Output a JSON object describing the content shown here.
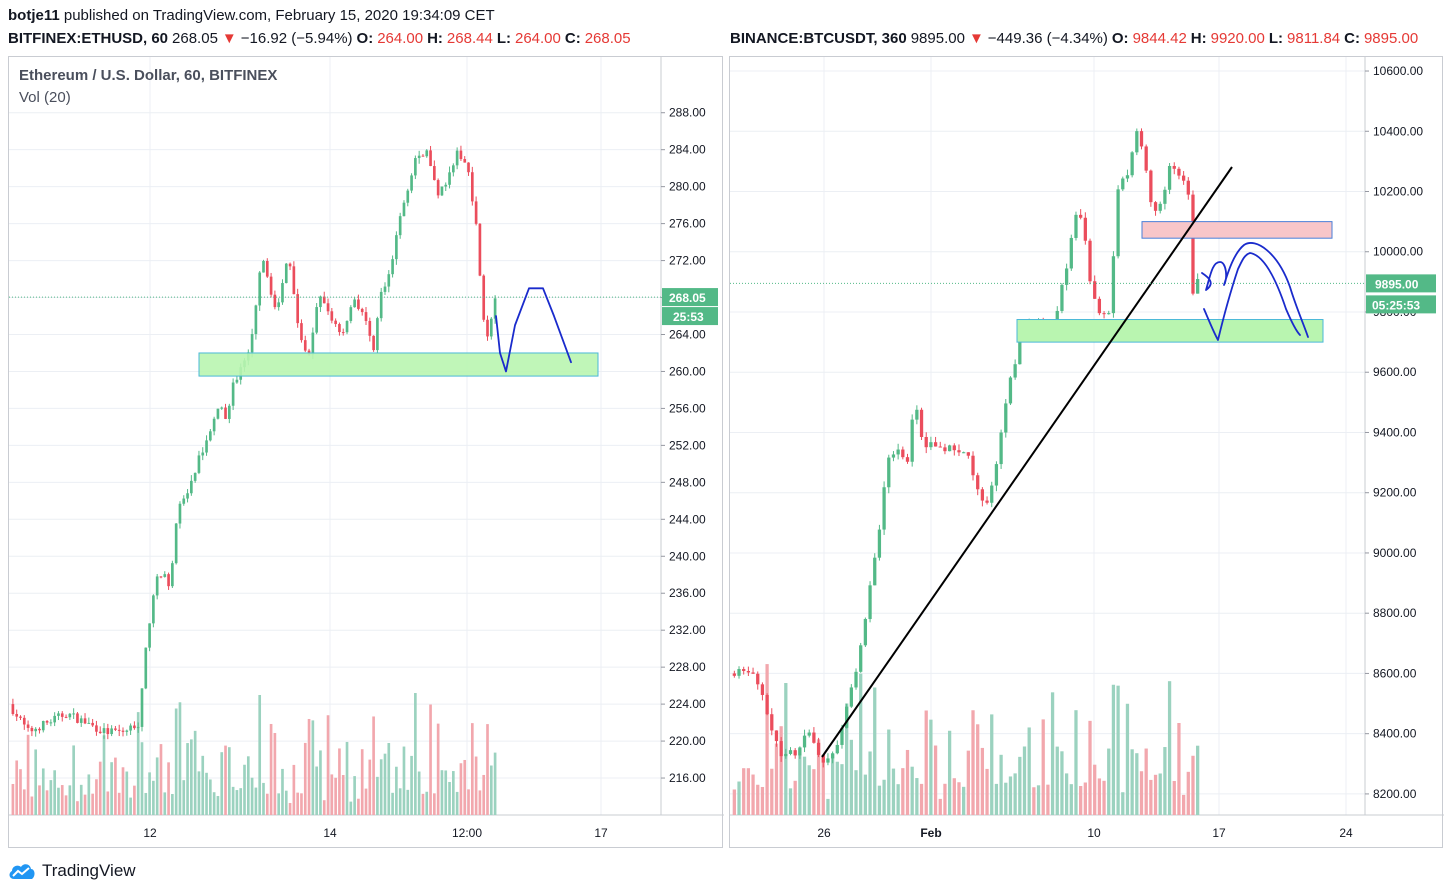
{
  "header": {
    "author": "botje11",
    "published_text": "published on TradingView.com, February 15, 2020 19:34:09 CET"
  },
  "left_quote": {
    "symbol": "BITFINEX:ETHUSD, 60",
    "price": "268.05",
    "arrow": "▼",
    "change": "−16.92 (−5.94%)",
    "o_label": "O:",
    "o": "264.00",
    "h_label": "H:",
    "h": "268.44",
    "l_label": "L:",
    "l": "264.00",
    "c_label": "C:",
    "c": "268.05"
  },
  "right_quote": {
    "symbol": "BINANCE:BTCUSDT, 360",
    "price": "9895.00",
    "arrow": "▼",
    "change": "−449.36 (−4.34%)",
    "o_label": "O:",
    "o": "9844.42",
    "h_label": "H:",
    "h": "9920.00",
    "l_label": "L:",
    "l": "9811.84",
    "c_label": "C:",
    "c": "9895.00"
  },
  "footer": {
    "brand": "TradingView"
  },
  "colors": {
    "up": "#53b987",
    "down": "#eb4d5c",
    "vol_up": "#9bd2bf",
    "vol_down": "#f2a7ad",
    "support_fill": "#b9f5b0",
    "support_stroke": "#4ab8d8",
    "resistance_fill": "#f8c6c9",
    "resistance_stroke": "#4a7fd8",
    "drawing": "#1a2bcc",
    "trendline": "#000000",
    "last_price_bg": "#53b987",
    "grid": "#eceff4"
  },
  "chart_data": [
    {
      "type": "candlestick",
      "title": "Ethereum / U.S. Dollar, 60, BITFINEX",
      "indicator": "Vol (20)",
      "y_ticks": [
        "288.00",
        "284.00",
        "280.00",
        "276.00",
        "272.00",
        "268.00",
        "264.00",
        "260.00",
        "256.00",
        "252.00",
        "248.00",
        "244.00",
        "240.00",
        "236.00",
        "232.00",
        "228.00",
        "224.00",
        "220.00",
        "216.00"
      ],
      "ylim": [
        212,
        291
      ],
      "x_ticks": [
        "12",
        "14",
        "12:00",
        "17"
      ],
      "last_price": "268.05",
      "countdown": "25:53",
      "path_points": [
        [
          0,
          224
        ],
        [
          5,
          221
        ],
        [
          10,
          222
        ],
        [
          15,
          223
        ],
        [
          20,
          222
        ],
        [
          25,
          221
        ],
        [
          30,
          221
        ],
        [
          34,
          222
        ],
        [
          36,
          231
        ],
        [
          38,
          237
        ],
        [
          40,
          238
        ],
        [
          42,
          237
        ],
        [
          44,
          245
        ],
        [
          47,
          247
        ],
        [
          50,
          251
        ],
        [
          53,
          254
        ],
        [
          55,
          256
        ],
        [
          57,
          255
        ],
        [
          58,
          258
        ],
        [
          60,
          260
        ],
        [
          63,
          262
        ],
        [
          66,
          273
        ],
        [
          70,
          266
        ],
        [
          73,
          273
        ],
        [
          75,
          266
        ],
        [
          78,
          261
        ],
        [
          81,
          268
        ],
        [
          84,
          266
        ],
        [
          87,
          264
        ],
        [
          90,
          268
        ],
        [
          93,
          266
        ],
        [
          95,
          262
        ],
        [
          97,
          268
        ],
        [
          100,
          272
        ],
        [
          103,
          278
        ],
        [
          106,
          283
        ],
        [
          109,
          284
        ],
        [
          112,
          279
        ],
        [
          115,
          281
        ],
        [
          117,
          284
        ],
        [
          120,
          282
        ],
        [
          122,
          276
        ],
        [
          124,
          266
        ],
        [
          125,
          264
        ],
        [
          127,
          268
        ]
      ],
      "volume_max": 230,
      "support_zone": [
        259.5,
        262.0
      ],
      "sketch_projection": [
        266,
        262,
        260,
        265,
        269,
        269,
        266,
        261
      ]
    },
    {
      "type": "candlestick",
      "y_ticks": [
        "10600.00",
        "10400.00",
        "10200.00",
        "10000.00",
        "9800.00",
        "9600.00",
        "9400.00",
        "9200.00",
        "9000.00",
        "8800.00",
        "8600.00",
        "8400.00",
        "8200.00"
      ],
      "ylim": [
        8130,
        10620
      ],
      "x_ticks": [
        "26",
        "Feb",
        "10",
        "17",
        "24"
      ],
      "last_price": "9895.00",
      "countdown": "05:25:53",
      "path_points": [
        [
          0,
          8600
        ],
        [
          3,
          8620
        ],
        [
          6,
          8600
        ],
        [
          9,
          8420
        ],
        [
          12,
          8330
        ],
        [
          15,
          8340
        ],
        [
          18,
          8400
        ],
        [
          21,
          8310
        ],
        [
          24,
          8340
        ],
        [
          27,
          8520
        ],
        [
          30,
          8700
        ],
        [
          32,
          8900
        ],
        [
          34,
          9100
        ],
        [
          36,
          9320
        ],
        [
          38,
          9350
        ],
        [
          40,
          9280
        ],
        [
          42,
          9520
        ],
        [
          44,
          9340
        ],
        [
          46,
          9380
        ],
        [
          48,
          9330
        ],
        [
          50,
          9350
        ],
        [
          52,
          9340
        ],
        [
          54,
          9320
        ],
        [
          56,
          9230
        ],
        [
          58,
          9150
        ],
        [
          60,
          9260
        ],
        [
          62,
          9450
        ],
        [
          64,
          9600
        ],
        [
          66,
          9720
        ],
        [
          68,
          9770
        ],
        [
          70,
          9760
        ],
        [
          72,
          9740
        ],
        [
          74,
          9800
        ],
        [
          76,
          9920
        ],
        [
          78,
          10120
        ],
        [
          80,
          10100
        ],
        [
          82,
          9850
        ],
        [
          84,
          9800
        ],
        [
          86,
          9790
        ],
        [
          88,
          10200
        ],
        [
          90,
          10260
        ],
        [
          92,
          10400
        ],
        [
          94,
          10300
        ],
        [
          96,
          10120
        ],
        [
          98,
          10180
        ],
        [
          100,
          10300
        ],
        [
          102,
          10260
        ],
        [
          104,
          10180
        ],
        [
          105,
          9850
        ],
        [
          106,
          9895
        ]
      ],
      "volume_max": 420,
      "support_zone": [
        9700,
        9775
      ],
      "resistance_zone": [
        10045,
        10100
      ]
    }
  ]
}
